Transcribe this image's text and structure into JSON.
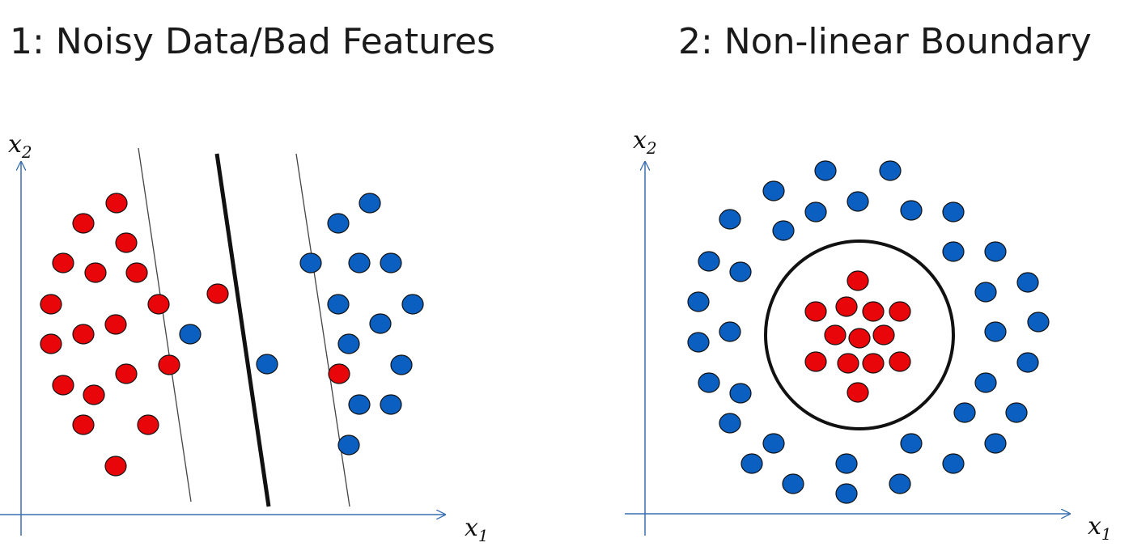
{
  "titles": {
    "panel_1": "1: Noisy Data/Bad Features",
    "panel_2": "2: Non-linear Boundary"
  },
  "axes": {
    "x_label": "x",
    "x_sub": "1",
    "y_label": "x",
    "y_sub": "2"
  },
  "colors": {
    "class_red": "#e8060a",
    "class_blue": "#0a5fc0",
    "outline": "#111111",
    "axis": "#3a6fb0"
  }
}
